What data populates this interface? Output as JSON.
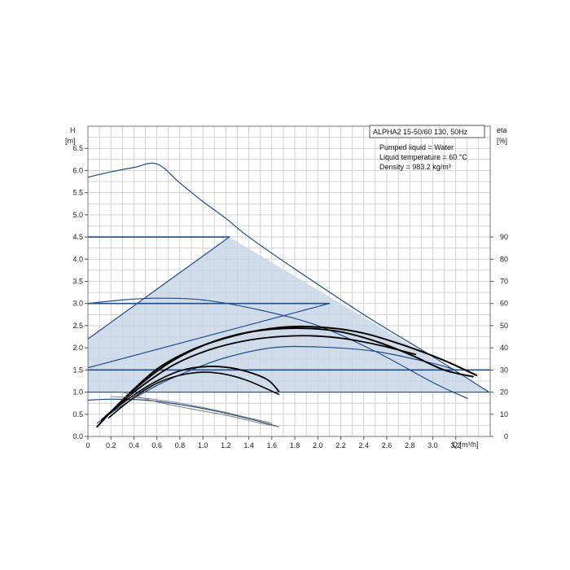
{
  "chart_data": {
    "type": "line",
    "title": "ALPHA2 15-50/60 130, 50Hz",
    "info_lines": [
      "Pumped liquid = Water",
      "Liquid temperature = 60 °C",
      "Density = 983.2 kg/m³"
    ],
    "y_left_label": [
      "H",
      "[m]"
    ],
    "y_right_label": [
      "eta",
      "[%]"
    ],
    "x_label": "Q [m³/h]",
    "xlim": [
      0,
      3.5
    ],
    "ylim_left": [
      0,
      7.0
    ],
    "ylim_right": [
      0,
      140
    ],
    "x_ticks": [
      "0",
      "0.2",
      "0.4",
      "0.6",
      "0.8",
      "1.0",
      "1.2",
      "1.4",
      "1.6",
      "1.8",
      "2.0",
      "2.2",
      "2.4",
      "2.6",
      "2.8",
      "3.0",
      "3.2"
    ],
    "x_tick_values": [
      0,
      0.2,
      0.4,
      0.6,
      0.8,
      1.0,
      1.2,
      1.4,
      1.6,
      1.8,
      2.0,
      2.2,
      2.4,
      2.6,
      2.8,
      3.0,
      3.2
    ],
    "y_ticks_left": [
      "0.0",
      "0.5",
      "1.0",
      "1.5",
      "2.0",
      "2.5",
      "3.0",
      "3.5",
      "4.0",
      "4.5",
      "5.0",
      "5.5",
      "6.0",
      "6.5"
    ],
    "y_tick_values_left": [
      0,
      0.5,
      1.0,
      1.5,
      2.0,
      2.5,
      3.0,
      3.5,
      4.0,
      4.5,
      5.0,
      5.5,
      6.0,
      6.5
    ],
    "y_ticks_right": [
      "0",
      "10",
      "20",
      "30",
      "40",
      "50",
      "60",
      "70",
      "80",
      "90"
    ],
    "y_tick_values_right": [
      0,
      10,
      20,
      30,
      40,
      50,
      60,
      70,
      80,
      90
    ],
    "grid": true,
    "colors": {
      "blue": "#1f4e8c",
      "black": "#000000",
      "grey": "#777777",
      "region_fill": "#c9d6e6",
      "grid": "#c8c8c8"
    },
    "shaded_region": [
      [
        0,
        1.0
      ],
      [
        0,
        2.2
      ],
      [
        1.23,
        4.5
      ],
      [
        3.49,
        1.0
      ]
    ],
    "series": [
      {
        "color": "blue",
        "width": 1.2,
        "points": [
          [
            0,
            5.85
          ],
          [
            0.2,
            5.97
          ],
          [
            0.4,
            6.07
          ],
          [
            0.6,
            6.15
          ],
          [
            0.8,
            5.72
          ],
          [
            1.0,
            5.3
          ],
          [
            1.2,
            4.92
          ],
          [
            1.4,
            4.5
          ],
          [
            1.8,
            3.78
          ],
          [
            2.4,
            2.75
          ],
          [
            3.0,
            1.8
          ],
          [
            3.49,
            1.0
          ]
        ]
      },
      {
        "color": "blue",
        "width": 1.6,
        "points": [
          [
            0,
            4.5
          ],
          [
            1.23,
            4.5
          ]
        ]
      },
      {
        "color": "blue",
        "width": 1.6,
        "points": [
          [
            0,
            3.0
          ],
          [
            2.1,
            3.0
          ]
        ]
      },
      {
        "color": "blue",
        "width": 1.6,
        "points": [
          [
            0,
            1.5
          ],
          [
            3.5,
            1.5
          ]
        ]
      },
      {
        "color": "blue",
        "width": 1.2,
        "points": [
          [
            0,
            2.2
          ],
          [
            1.23,
            4.5
          ]
        ]
      },
      {
        "color": "blue",
        "width": 1.2,
        "points": [
          [
            0,
            1.55
          ],
          [
            2.1,
            3.0
          ]
        ]
      },
      {
        "color": "blue",
        "width": 1.2,
        "points": [
          [
            0,
            1.0
          ],
          [
            3.49,
            1.0
          ]
        ]
      },
      {
        "color": "blue",
        "width": 1.2,
        "points": [
          [
            0,
            3.0
          ],
          [
            0.3,
            3.08
          ],
          [
            0.6,
            3.12
          ],
          [
            1.0,
            3.08
          ],
          [
            1.5,
            2.85
          ],
          [
            2.0,
            2.5
          ],
          [
            2.5,
            1.92
          ],
          [
            3.0,
            1.22
          ],
          [
            3.3,
            0.86
          ]
        ]
      },
      {
        "color": "blue",
        "width": 1.2,
        "points": [
          [
            0,
            0.82
          ],
          [
            0.2,
            0.84
          ],
          [
            0.5,
            0.82
          ],
          [
            0.8,
            0.72
          ],
          [
            1.1,
            0.58
          ],
          [
            1.4,
            0.4
          ],
          [
            1.66,
            0.22
          ]
        ]
      },
      {
        "color": "blue",
        "width": 1.2,
        "points": [
          [
            0.08,
            0.3
          ],
          [
            0.3,
            0.7
          ],
          [
            0.6,
            1.15
          ],
          [
            0.9,
            1.5
          ],
          [
            1.2,
            1.78
          ],
          [
            1.6,
            2.0
          ],
          [
            2.0,
            2.02
          ],
          [
            2.5,
            1.92
          ],
          [
            3.0,
            1.65
          ],
          [
            3.2,
            1.5
          ]
        ]
      },
      {
        "color": "black",
        "width": 2.0,
        "points": [
          [
            0.08,
            0.22
          ],
          [
            0.3,
            0.82
          ],
          [
            0.6,
            1.52
          ],
          [
            0.9,
            1.95
          ],
          [
            1.2,
            2.22
          ],
          [
            1.5,
            2.4
          ],
          [
            1.8,
            2.48
          ],
          [
            2.1,
            2.45
          ],
          [
            2.4,
            2.33
          ],
          [
            2.7,
            2.1
          ],
          [
            3.0,
            1.82
          ],
          [
            3.2,
            1.6
          ],
          [
            3.38,
            1.38
          ]
        ]
      },
      {
        "color": "black",
        "width": 2.0,
        "points": [
          [
            0.12,
            0.35
          ],
          [
            0.4,
            1.05
          ],
          [
            0.7,
            1.65
          ],
          [
            1.0,
            2.05
          ],
          [
            1.3,
            2.3
          ],
          [
            1.6,
            2.42
          ],
          [
            1.9,
            2.44
          ],
          [
            2.2,
            2.36
          ],
          [
            2.5,
            2.15
          ],
          [
            2.8,
            1.85
          ],
          [
            3.1,
            1.5
          ],
          [
            3.35,
            1.35
          ]
        ]
      },
      {
        "color": "black",
        "width": 1.8,
        "points": [
          [
            0.15,
            0.45
          ],
          [
            0.45,
            1.1
          ],
          [
            0.75,
            1.62
          ],
          [
            1.05,
            1.95
          ],
          [
            1.35,
            2.15
          ],
          [
            1.65,
            2.25
          ],
          [
            1.95,
            2.27
          ],
          [
            2.25,
            2.2
          ],
          [
            2.55,
            2.05
          ],
          [
            2.85,
            1.85
          ]
        ]
      },
      {
        "color": "black",
        "width": 1.8,
        "points": [
          [
            0.12,
            0.38
          ],
          [
            0.3,
            0.75
          ],
          [
            0.55,
            1.18
          ],
          [
            0.8,
            1.48
          ],
          [
            1.05,
            1.58
          ],
          [
            1.3,
            1.52
          ],
          [
            1.55,
            1.3
          ],
          [
            1.66,
            1.02
          ]
        ]
      },
      {
        "color": "black",
        "width": 1.6,
        "points": [
          [
            0.18,
            0.42
          ],
          [
            0.4,
            0.88
          ],
          [
            0.6,
            1.2
          ],
          [
            0.8,
            1.38
          ],
          [
            1.0,
            1.45
          ],
          [
            1.2,
            1.4
          ],
          [
            1.4,
            1.25
          ],
          [
            1.66,
            0.95
          ]
        ]
      },
      {
        "color": "grey",
        "width": 0.9,
        "points": [
          [
            0.3,
            1.0
          ],
          [
            0.6,
            0.78
          ],
          [
            0.9,
            0.62
          ],
          [
            1.2,
            0.48
          ],
          [
            1.5,
            0.3
          ],
          [
            1.66,
            0.22
          ]
        ]
      },
      {
        "color": "grey",
        "width": 0.9,
        "points": [
          [
            0.2,
            0.9
          ],
          [
            0.5,
            0.86
          ],
          [
            0.8,
            0.75
          ],
          [
            1.1,
            0.6
          ],
          [
            1.4,
            0.42
          ],
          [
            1.6,
            0.3
          ]
        ]
      }
    ]
  }
}
